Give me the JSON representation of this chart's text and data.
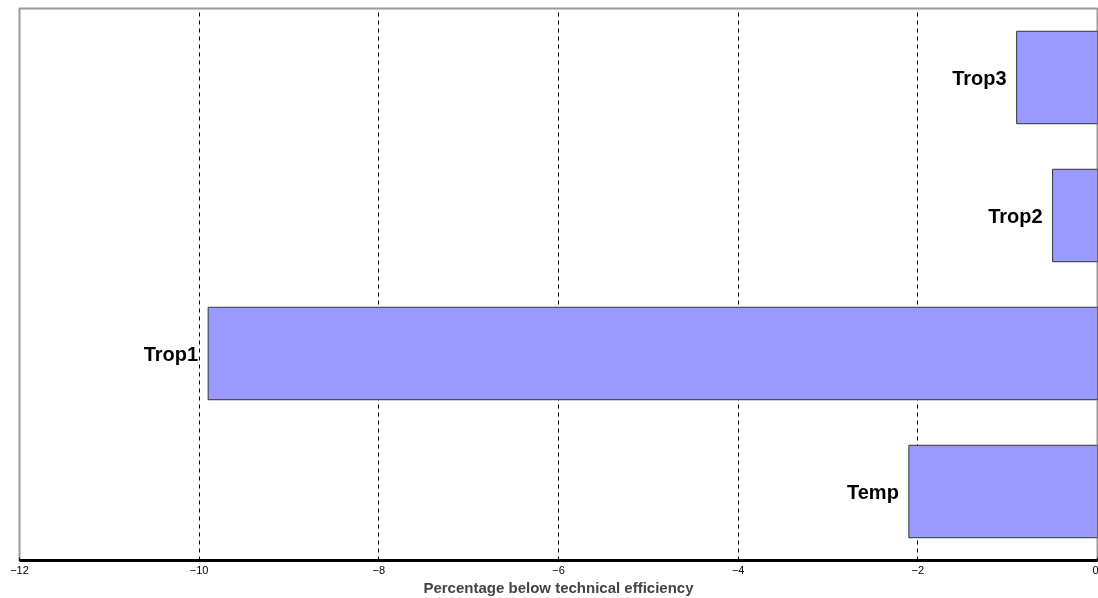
{
  "chart_data": {
    "type": "bar",
    "orientation": "horizontal",
    "xlabel": "Percentage below technical efficiency",
    "categories": [
      "Trop3",
      "Trop2",
      "Trop1",
      "Temp"
    ],
    "values": [
      -0.9,
      -0.5,
      -9.9,
      -2.1
    ],
    "color": "#9999ff",
    "xlim": [
      -12,
      0
    ],
    "xticks": [
      -12,
      -10,
      -8,
      -6,
      -4,
      -2,
      0
    ],
    "grid": "x"
  }
}
